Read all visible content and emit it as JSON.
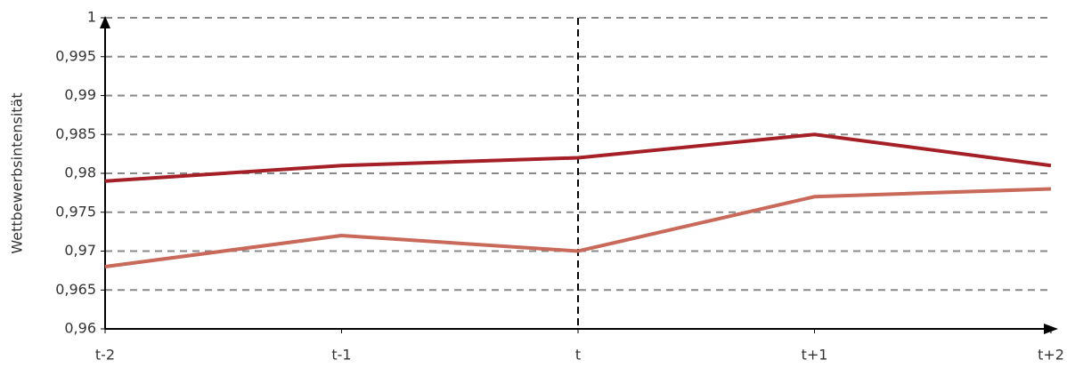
{
  "chart_data": {
    "type": "line",
    "y_label": "Wettbewerbsintensität",
    "categories": [
      "t-2",
      "t-1",
      "t",
      "t+1",
      "t+2"
    ],
    "series": [
      {
        "color": "#a51f27",
        "values": [
          0.979,
          0.981,
          0.982,
          0.985,
          0.981
        ]
      },
      {
        "color": "#c8695a",
        "values": [
          0.968,
          0.972,
          0.97,
          0.977,
          0.978
        ]
      }
    ],
    "ylim": [
      0.96,
      1
    ],
    "yticks": [
      {
        "value": 0.96,
        "label": "0,96"
      },
      {
        "value": 0.965,
        "label": "0,965"
      },
      {
        "value": 0.97,
        "label": "0,97"
      },
      {
        "value": 0.975,
        "label": "0,975"
      },
      {
        "value": 0.98,
        "label": "0,98"
      },
      {
        "value": 0.985,
        "label": "0,985"
      },
      {
        "value": 0.99,
        "label": "0,99"
      },
      {
        "value": 0.995,
        "label": "0,995"
      },
      1
    ],
    "grid": true,
    "vline": "t"
  }
}
